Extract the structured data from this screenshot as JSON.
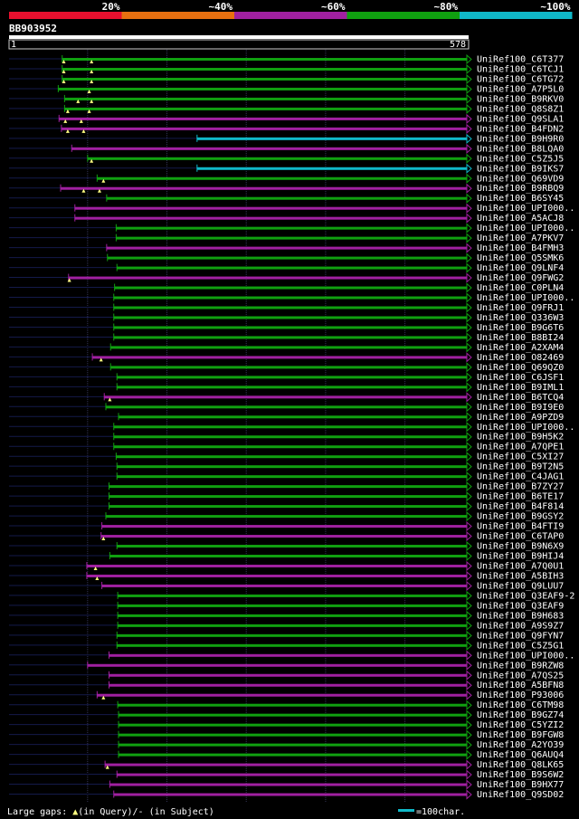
{
  "chart_data": {
    "type": "alignment-overview",
    "title": "BB903952",
    "query_length": 578,
    "axis": {
      "start_label": "1",
      "end_label": "578",
      "min": 1,
      "max": 578
    },
    "identity_legend": [
      {
        "label": "20%",
        "color": "#e8102e"
      },
      {
        "label": "~40%",
        "color": "#e87010"
      },
      {
        "label": "~60%",
        "color": "#a020a0"
      },
      {
        "label": "~80%",
        "color": "#10a010"
      },
      {
        "label": "~100%",
        "color": "#10b8c8"
      }
    ],
    "footer": {
      "gaps_label": "Large gaps: ",
      "gap_query_symbol": "▲",
      "gap_query_label": "(in Query)/",
      "gap_subject_symbol": "-",
      "gap_subject_label": " (in Subject)",
      "scale_label": "=100char.",
      "scale_color": "#10b8c8"
    },
    "hits": [
      {
        "name": "UniRef100_C6T377",
        "start": 68,
        "end": 578,
        "identity": 80,
        "gaps": [
          70,
          105
        ]
      },
      {
        "name": "UniRef100_C6TCJ1",
        "start": 68,
        "end": 578,
        "identity": 80,
        "gaps": [
          70,
          105
        ]
      },
      {
        "name": "UniRef100_C6TG72",
        "start": 68,
        "end": 578,
        "identity": 80,
        "gaps": [
          70,
          105
        ]
      },
      {
        "name": "UniRef100_A7P5L0",
        "start": 63,
        "end": 578,
        "identity": 80,
        "gaps": [
          102
        ]
      },
      {
        "name": "UniRef100_B9RKV0",
        "start": 71,
        "end": 578,
        "identity": 80,
        "gaps": [
          88,
          105
        ]
      },
      {
        "name": "UniRef100_Q8S8Z1",
        "start": 71,
        "end": 578,
        "identity": 80,
        "gaps": [
          75,
          102
        ]
      },
      {
        "name": "UniRef100_Q9SLA1",
        "start": 64,
        "end": 578,
        "identity": 60,
        "gaps": [
          72,
          92
        ]
      },
      {
        "name": "UniRef100_B4FDN2",
        "start": 67,
        "end": 578,
        "identity": 60,
        "gaps": [
          75,
          95
        ]
      },
      {
        "name": "UniRef100_B9H9R0",
        "start": 238,
        "end": 578,
        "identity": 100,
        "gaps": []
      },
      {
        "name": "UniRef100_B8LQA0",
        "start": 80,
        "end": 578,
        "identity": 60,
        "gaps": []
      },
      {
        "name": "UniRef100_C5Z5J5",
        "start": 100,
        "end": 578,
        "identity": 80,
        "gaps": [
          105
        ]
      },
      {
        "name": "UniRef100_B9IKS7",
        "start": 238,
        "end": 578,
        "identity": 100,
        "gaps": []
      },
      {
        "name": "UniRef100_Q69VD9",
        "start": 112,
        "end": 578,
        "identity": 80,
        "gaps": [
          120
        ]
      },
      {
        "name": "UniRef100_B9RBQ9",
        "start": 66,
        "end": 578,
        "identity": 60,
        "gaps": [
          95,
          115
        ]
      },
      {
        "name": "UniRef100_B6SY45",
        "start": 124,
        "end": 578,
        "identity": 80,
        "gaps": []
      },
      {
        "name": "UniRef100_UPI000..",
        "start": 84,
        "end": 578,
        "identity": 60,
        "gaps": []
      },
      {
        "name": "UniRef100_A5ACJ8",
        "start": 84,
        "end": 578,
        "identity": 60,
        "gaps": []
      },
      {
        "name": "UniRef100_UPI000..",
        "start": 136,
        "end": 578,
        "identity": 80,
        "gaps": []
      },
      {
        "name": "UniRef100_A7PKV7",
        "start": 136,
        "end": 578,
        "identity": 80,
        "gaps": []
      },
      {
        "name": "UniRef100_B4FMH3",
        "start": 124,
        "end": 578,
        "identity": 60,
        "gaps": []
      },
      {
        "name": "UniRef100_Q5SMK6",
        "start": 125,
        "end": 578,
        "identity": 80,
        "gaps": []
      },
      {
        "name": "UniRef100_Q9LNF4",
        "start": 137,
        "end": 578,
        "identity": 80,
        "gaps": []
      },
      {
        "name": "UniRef100_Q9FWG2",
        "start": 76,
        "end": 578,
        "identity": 60,
        "gaps": [
          77
        ]
      },
      {
        "name": "UniRef100_C0PLN4",
        "start": 134,
        "end": 578,
        "identity": 80,
        "gaps": []
      },
      {
        "name": "UniRef100_UPI000..",
        "start": 133,
        "end": 578,
        "identity": 80,
        "gaps": []
      },
      {
        "name": "UniRef100_Q9FRJ1",
        "start": 133,
        "end": 578,
        "identity": 80,
        "gaps": []
      },
      {
        "name": "UniRef100_Q336W3",
        "start": 133,
        "end": 578,
        "identity": 80,
        "gaps": []
      },
      {
        "name": "UniRef100_B9G6T6",
        "start": 133,
        "end": 578,
        "identity": 80,
        "gaps": []
      },
      {
        "name": "UniRef100_B8BI24",
        "start": 133,
        "end": 578,
        "identity": 80,
        "gaps": []
      },
      {
        "name": "UniRef100_A2XAM4",
        "start": 129,
        "end": 578,
        "identity": 80,
        "gaps": []
      },
      {
        "name": "UniRef100_O82469",
        "start": 106,
        "end": 578,
        "identity": 60,
        "gaps": [
          117
        ]
      },
      {
        "name": "UniRef100_Q69QZ0",
        "start": 129,
        "end": 578,
        "identity": 80,
        "gaps": []
      },
      {
        "name": "UniRef100_C6JSF1",
        "start": 137,
        "end": 578,
        "identity": 80,
        "gaps": []
      },
      {
        "name": "UniRef100_B9IML1",
        "start": 137,
        "end": 578,
        "identity": 80,
        "gaps": []
      },
      {
        "name": "UniRef100_B6TCQ4",
        "start": 121,
        "end": 578,
        "identity": 60,
        "gaps": [
          128
        ]
      },
      {
        "name": "UniRef100_B9I9E0",
        "start": 123,
        "end": 578,
        "identity": 80,
        "gaps": []
      },
      {
        "name": "UniRef100_A9PZD9",
        "start": 139,
        "end": 578,
        "identity": 80,
        "gaps": []
      },
      {
        "name": "UniRef100_UPI000..",
        "start": 133,
        "end": 578,
        "identity": 80,
        "gaps": []
      },
      {
        "name": "UniRef100_B9H5K2",
        "start": 133,
        "end": 578,
        "identity": 80,
        "gaps": []
      },
      {
        "name": "UniRef100_A7QPE1",
        "start": 133,
        "end": 578,
        "identity": 80,
        "gaps": []
      },
      {
        "name": "UniRef100_C5XI27",
        "start": 136,
        "end": 578,
        "identity": 80,
        "gaps": []
      },
      {
        "name": "UniRef100_B9T2N5",
        "start": 137,
        "end": 578,
        "identity": 80,
        "gaps": []
      },
      {
        "name": "UniRef100_C4JAG1",
        "start": 137,
        "end": 578,
        "identity": 80,
        "gaps": []
      },
      {
        "name": "UniRef100_B7ZY27",
        "start": 127,
        "end": 578,
        "identity": 80,
        "gaps": []
      },
      {
        "name": "UniRef100_B6TE17",
        "start": 127,
        "end": 578,
        "identity": 80,
        "gaps": []
      },
      {
        "name": "UniRef100_B4F814",
        "start": 127,
        "end": 578,
        "identity": 80,
        "gaps": []
      },
      {
        "name": "UniRef100_B9GSY2",
        "start": 123,
        "end": 578,
        "identity": 80,
        "gaps": []
      },
      {
        "name": "UniRef100_B4FTI9",
        "start": 118,
        "end": 578,
        "identity": 60,
        "gaps": []
      },
      {
        "name": "UniRef100_C6TAP0",
        "start": 117,
        "end": 578,
        "identity": 60,
        "gaps": [
          120
        ]
      },
      {
        "name": "UniRef100_B9N6X9",
        "start": 137,
        "end": 578,
        "identity": 80,
        "gaps": []
      },
      {
        "name": "UniRef100_B9HIJ4",
        "start": 128,
        "end": 578,
        "identity": 80,
        "gaps": []
      },
      {
        "name": "UniRef100_A7Q0U1",
        "start": 99,
        "end": 578,
        "identity": 60,
        "gaps": [
          110
        ]
      },
      {
        "name": "UniRef100_A5BIH3",
        "start": 99,
        "end": 578,
        "identity": 60,
        "gaps": [
          112
        ]
      },
      {
        "name": "UniRef100_Q9LUU7",
        "start": 118,
        "end": 578,
        "identity": 60,
        "gaps": []
      },
      {
        "name": "UniRef100_Q3EAF9-2",
        "start": 138,
        "end": 578,
        "identity": 80,
        "gaps": []
      },
      {
        "name": "UniRef100_Q3EAF9",
        "start": 138,
        "end": 578,
        "identity": 80,
        "gaps": []
      },
      {
        "name": "UniRef100_B9H683",
        "start": 138,
        "end": 578,
        "identity": 80,
        "gaps": []
      },
      {
        "name": "UniRef100_A9S9Z7",
        "start": 138,
        "end": 578,
        "identity": 80,
        "gaps": []
      },
      {
        "name": "UniRef100_Q9FYN7",
        "start": 137,
        "end": 578,
        "identity": 80,
        "gaps": []
      },
      {
        "name": "UniRef100_C5Z5G1",
        "start": 137,
        "end": 578,
        "identity": 80,
        "gaps": []
      },
      {
        "name": "UniRef100_UPI000..",
        "start": 127,
        "end": 578,
        "identity": 60,
        "gaps": []
      },
      {
        "name": "UniRef100_B9RZW8",
        "start": 100,
        "end": 578,
        "identity": 60,
        "gaps": []
      },
      {
        "name": "UniRef100_A7QS25",
        "start": 127,
        "end": 578,
        "identity": 60,
        "gaps": []
      },
      {
        "name": "UniRef100_A5BFN8",
        "start": 127,
        "end": 578,
        "identity": 60,
        "gaps": []
      },
      {
        "name": "UniRef100_P93006",
        "start": 112,
        "end": 578,
        "identity": 60,
        "gaps": [
          120
        ]
      },
      {
        "name": "UniRef100_C6TM98",
        "start": 138,
        "end": 578,
        "identity": 80,
        "gaps": []
      },
      {
        "name": "UniRef100_B9GZ74",
        "start": 139,
        "end": 578,
        "identity": 80,
        "gaps": []
      },
      {
        "name": "UniRef100_C5YZI2",
        "start": 139,
        "end": 578,
        "identity": 80,
        "gaps": []
      },
      {
        "name": "UniRef100_B9FGW8",
        "start": 139,
        "end": 578,
        "identity": 80,
        "gaps": []
      },
      {
        "name": "UniRef100_A2YO39",
        "start": 139,
        "end": 578,
        "identity": 80,
        "gaps": []
      },
      {
        "name": "UniRef100_Q6AUQ4",
        "start": 139,
        "end": 578,
        "identity": 80,
        "gaps": []
      },
      {
        "name": "UniRef100_Q8LK65",
        "start": 122,
        "end": 578,
        "identity": 60,
        "gaps": [
          125
        ]
      },
      {
        "name": "UniRef100_B9S6W2",
        "start": 137,
        "end": 578,
        "identity": 60,
        "gaps": []
      },
      {
        "name": "UniRef100_B9HX77",
        "start": 128,
        "end": 578,
        "identity": 60,
        "gaps": []
      },
      {
        "name": "UniRef100_Q9SD02",
        "start": 133,
        "end": 578,
        "identity": 60,
        "gaps": []
      }
    ]
  }
}
